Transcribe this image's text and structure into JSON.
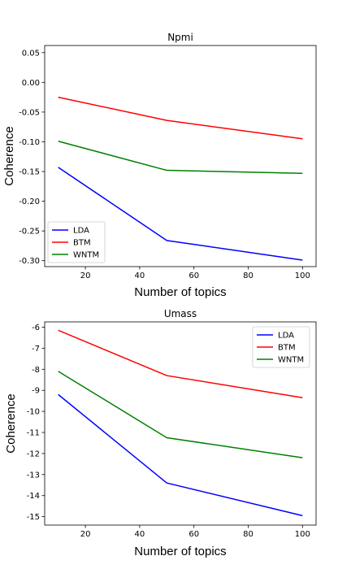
{
  "chart_data": [
    {
      "type": "line",
      "title": "Npmi",
      "xlabel": "Number of topics",
      "ylabel": "Coherence",
      "x": [
        10,
        50,
        100
      ],
      "xlim": [
        5,
        105
      ],
      "ylim": [
        -0.31,
        0.062
      ],
      "xticks": [
        "20",
        "40",
        "60",
        "80",
        "100"
      ],
      "yticks": [
        "0.05",
        "0.00",
        "-0.05",
        "-0.10",
        "-0.15",
        "-0.20",
        "-0.25",
        "-0.30"
      ],
      "series": [
        {
          "name": "LDA",
          "color": "#0000ff",
          "values": [
            -0.143,
            -0.266,
            -0.299
          ]
        },
        {
          "name": "BTM",
          "color": "#ff0000",
          "values": [
            -0.025,
            -0.064,
            -0.095
          ]
        },
        {
          "name": "WNTM",
          "color": "#008000",
          "values": [
            -0.099,
            -0.148,
            -0.153
          ]
        }
      ],
      "legend": "lower-left"
    },
    {
      "type": "line",
      "title": "Umass",
      "xlabel": "Number of topics",
      "ylabel": "Coherence",
      "x": [
        10,
        50,
        100
      ],
      "xlim": [
        5,
        105
      ],
      "ylim": [
        -15.4,
        -5.75
      ],
      "xticks": [
        "20",
        "40",
        "60",
        "80",
        "100"
      ],
      "yticks": [
        "-6",
        "-7",
        "-8",
        "-9",
        "-10",
        "-11",
        "-12",
        "-13",
        "-14",
        "-15"
      ],
      "series": [
        {
          "name": "LDA",
          "color": "#0000ff",
          "values": [
            -9.2,
            -13.4,
            -14.95
          ]
        },
        {
          "name": "BTM",
          "color": "#ff0000",
          "values": [
            -6.15,
            -8.3,
            -9.35
          ]
        },
        {
          "name": "WNTM",
          "color": "#008000",
          "values": [
            -8.1,
            -11.25,
            -12.2
          ]
        }
      ],
      "legend": "upper-right"
    }
  ]
}
